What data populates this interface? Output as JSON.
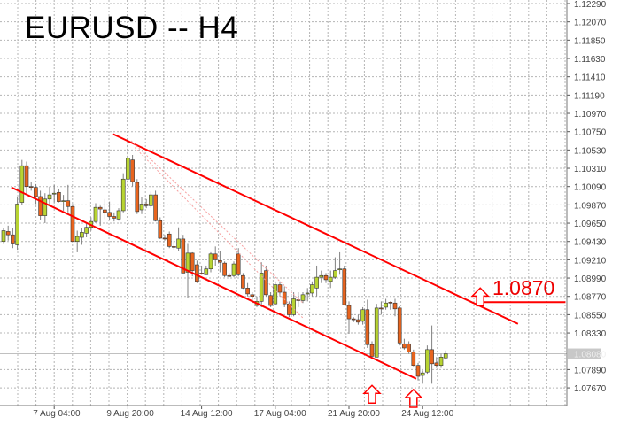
{
  "chart_data": {
    "type": "candlestick",
    "title": "EURUSD -- H4",
    "symbol": "EURUSD",
    "timeframe": "H4",
    "ylim": [
      1.0745,
      1.1233
    ],
    "y_ticks": [
      "1.12290",
      "1.12070",
      "1.11850",
      "1.11630",
      "1.11410",
      "1.11190",
      "1.10970",
      "1.10750",
      "1.10530",
      "1.10310",
      "1.10090",
      "1.09870",
      "1.09650",
      "1.09430",
      "1.09210",
      "1.08990",
      "1.08770",
      "1.08550",
      "1.08330",
      "1.07890",
      "1.07670"
    ],
    "x_ticks": [
      {
        "label": "7 Aug 04:00",
        "index": 11
      },
      {
        "label": "9 Aug 20:00",
        "index": 27
      },
      {
        "label": "14 Aug 12:00",
        "index": 43
      },
      {
        "label": "17 Aug 04:00",
        "index": 59
      },
      {
        "label": "21 Aug 20:00",
        "index": 75
      },
      {
        "label": "24 Aug 12:00",
        "index": 91
      }
    ],
    "grid": true,
    "current_price": "1.08080",
    "colors": {
      "bull": "#b8d432",
      "bear": "#e8641e",
      "wick": "#808080",
      "trendline": "#ff0000",
      "grid": "#b4b4b4"
    },
    "candles_ohlc": [
      [
        1.0943,
        1.0959,
        1.094,
        1.0956
      ],
      [
        1.0955,
        1.0962,
        1.0944,
        1.0951
      ],
      [
        1.0951,
        1.0959,
        1.0935,
        1.094
      ],
      [
        1.0939,
        1.0997,
        1.0933,
        1.0988
      ],
      [
        1.099,
        1.1041,
        1.0987,
        1.1034
      ],
      [
        1.1034,
        1.1039,
        1.1001,
        1.1009
      ],
      [
        1.1009,
        1.1015,
        1.1004,
        1.1008
      ],
      [
        1.1008,
        1.1012,
        1.0988,
        1.0997
      ],
      [
        1.0997,
        1.1004,
        1.0969,
        1.0974
      ],
      [
        1.0974,
        1.1001,
        1.0965,
        1.0994
      ],
      [
        1.0994,
        1.1009,
        1.0985,
        1.0999
      ],
      [
        1.1,
        1.1011,
        1.099,
        1.1001
      ],
      [
        1.1002,
        1.1006,
        1.099,
        1.0991
      ],
      [
        1.0992,
        1.0999,
        1.098,
        1.0992
      ],
      [
        1.0992,
        1.1011,
        1.0978,
        1.0985
      ],
      [
        1.0985,
        1.0988,
        1.0943,
        1.0943
      ],
      [
        1.0943,
        1.0956,
        1.093,
        1.0949
      ],
      [
        1.0948,
        1.0959,
        1.0939,
        1.0954
      ],
      [
        1.0953,
        1.0966,
        1.0948,
        1.096
      ],
      [
        1.096,
        1.0972,
        1.0956,
        1.0967
      ],
      [
        1.0967,
        1.0989,
        1.0965,
        1.0984
      ],
      [
        1.0984,
        1.0986,
        1.0962,
        1.0982
      ],
      [
        1.0981,
        1.0994,
        1.097,
        1.0978
      ],
      [
        1.0978,
        1.0991,
        1.0969,
        1.0973
      ],
      [
        1.0973,
        1.0978,
        1.0967,
        1.0971
      ],
      [
        1.097,
        1.0983,
        1.0968,
        1.098
      ],
      [
        1.098,
        1.1025,
        1.0978,
        1.1018
      ],
      [
        1.1018,
        1.1063,
        1.1009,
        1.1043
      ],
      [
        1.1041,
        1.1047,
        1.1009,
        1.1015
      ],
      [
        1.1014,
        1.1018,
        1.0976,
        1.0979
      ],
      [
        1.0981,
        1.0997,
        1.0976,
        1.0988
      ],
      [
        1.0988,
        1.0994,
        1.0983,
        1.0986
      ],
      [
        1.0986,
        1.1003,
        1.0983,
        1.0999
      ],
      [
        1.0999,
        1.1004,
        1.0967,
        1.0968
      ],
      [
        1.0968,
        1.0972,
        1.0946,
        1.0947
      ],
      [
        1.0947,
        1.0951,
        1.0944,
        1.0946
      ],
      [
        1.0952,
        1.0955,
        1.0935,
        1.0937
      ],
      [
        1.0937,
        1.0944,
        1.0933,
        1.0936
      ],
      [
        1.0935,
        1.096,
        1.0932,
        1.0946
      ],
      [
        1.0946,
        1.0951,
        1.0905,
        1.0905
      ],
      [
        1.0906,
        1.094,
        1.0875,
        1.0929
      ],
      [
        1.0929,
        1.093,
        1.0901,
        1.0908
      ],
      [
        1.0915,
        1.092,
        1.0893,
        1.0895
      ],
      [
        1.0905,
        1.0914,
        1.0903,
        1.0904
      ],
      [
        1.0903,
        1.0914,
        1.0903,
        1.091
      ],
      [
        1.091,
        1.093,
        1.0906,
        1.0928
      ],
      [
        1.0928,
        1.0937,
        1.0914,
        1.0921
      ],
      [
        1.092,
        1.0932,
        1.0906,
        1.0918
      ],
      [
        1.0917,
        1.0919,
        1.09,
        1.0902
      ],
      [
        1.0902,
        1.0905,
        1.09,
        1.0901
      ],
      [
        1.0902,
        1.0919,
        1.09,
        1.0916
      ],
      [
        1.0928,
        1.0935,
        1.0901,
        1.0903
      ],
      [
        1.0902,
        1.0905,
        1.0886,
        1.0887
      ],
      [
        1.0887,
        1.0893,
        1.0877,
        1.088
      ],
      [
        1.0879,
        1.0882,
        1.0869,
        1.0877
      ],
      [
        1.0866,
        1.0877,
        1.0864,
        1.0871
      ],
      [
        1.0871,
        1.0918,
        1.0864,
        1.0905
      ],
      [
        1.0908,
        1.0914,
        1.0877,
        1.0879
      ],
      [
        1.0878,
        1.0882,
        1.0864,
        1.0866
      ],
      [
        1.0868,
        1.0895,
        1.0866,
        1.0891
      ],
      [
        1.0891,
        1.0895,
        1.0877,
        1.0882
      ],
      [
        1.0882,
        1.0889,
        1.0864,
        1.0868
      ],
      [
        1.0868,
        1.0871,
        1.0852,
        1.0855
      ],
      [
        1.0855,
        1.0882,
        1.0853,
        1.0874
      ],
      [
        1.0873,
        1.0882,
        1.0864,
        1.0872
      ],
      [
        1.0872,
        1.0882,
        1.0869,
        1.0879
      ],
      [
        1.088,
        1.0887,
        1.0871,
        1.0881
      ],
      [
        1.0881,
        1.0895,
        1.0877,
        1.0891
      ],
      [
        1.0887,
        1.0914,
        1.0877,
        1.09
      ],
      [
        1.09,
        1.0908,
        1.0893,
        1.0902
      ],
      [
        1.0902,
        1.0905,
        1.0893,
        1.0897
      ],
      [
        1.0895,
        1.0908,
        1.0887,
        1.09
      ],
      [
        1.09,
        1.0924,
        1.0898,
        1.0908
      ],
      [
        1.0909,
        1.093,
        1.0903,
        1.091
      ],
      [
        1.091,
        1.0914,
        1.0866,
        1.0867
      ],
      [
        1.0866,
        1.0871,
        1.0832,
        1.085
      ],
      [
        1.085,
        1.0852,
        1.0846,
        1.0849
      ],
      [
        1.0849,
        1.0855,
        1.0843,
        1.0846
      ],
      [
        1.0847,
        1.0864,
        1.0843,
        1.0861
      ],
      [
        1.0861,
        1.0873,
        1.0815,
        1.0819
      ],
      [
        1.0819,
        1.0823,
        1.0803,
        1.0805
      ],
      [
        1.0804,
        1.0868,
        1.0804,
        1.0863
      ],
      [
        1.0863,
        1.0871,
        1.0855,
        1.0862
      ],
      [
        1.0864,
        1.0874,
        1.0861,
        1.0869
      ],
      [
        1.087,
        1.0871,
        1.0861,
        1.0869
      ],
      [
        1.0869,
        1.0874,
        1.0853,
        1.0862
      ],
      [
        1.0863,
        1.0865,
        1.0818,
        1.0821
      ],
      [
        1.082,
        1.0826,
        1.0813,
        1.0815
      ],
      [
        1.082,
        1.0823,
        1.0808,
        1.081
      ],
      [
        1.081,
        1.0813,
        1.0793,
        1.0794
      ],
      [
        1.0794,
        1.0797,
        1.0776,
        1.0781
      ],
      [
        1.0782,
        1.0788,
        1.0772,
        1.0785
      ],
      [
        1.0786,
        1.0818,
        1.0784,
        1.0813
      ],
      [
        1.0813,
        1.0842,
        1.0772,
        1.0796
      ],
      [
        1.0797,
        1.0804,
        1.0791,
        1.0794
      ],
      [
        1.0794,
        1.0808,
        1.0791,
        1.0804
      ],
      [
        1.0803,
        1.0812,
        1.0801,
        1.0808
      ]
    ],
    "trendlines": [
      {
        "name": "channel-upper",
        "from": [
          23.8,
          1.1072
        ],
        "to": [
          111.7,
          1.0844
        ],
        "style": "solid"
      },
      {
        "name": "channel-lower",
        "from": [
          1.7,
          1.1008
        ],
        "to": [
          89.6,
          1.0778
        ],
        "style": "solid"
      },
      {
        "name": "fan-line-1",
        "from": [
          27.7,
          1.1064
        ],
        "to": [
          65,
          1.0869
        ],
        "style": "dotted"
      },
      {
        "name": "fan-line-2",
        "from": [
          28.5,
          1.1056
        ],
        "to": [
          65,
          1.0851
        ],
        "style": "dotted"
      }
    ],
    "target": {
      "label": "1.0870",
      "price": 1.087,
      "from_index": 104,
      "to_index": 122
    },
    "up_arrows": [
      {
        "index": 80,
        "price": 1.077
      },
      {
        "index": 89,
        "price": 1.0765
      },
      {
        "index": 103.5,
        "price": 1.0887
      }
    ]
  }
}
